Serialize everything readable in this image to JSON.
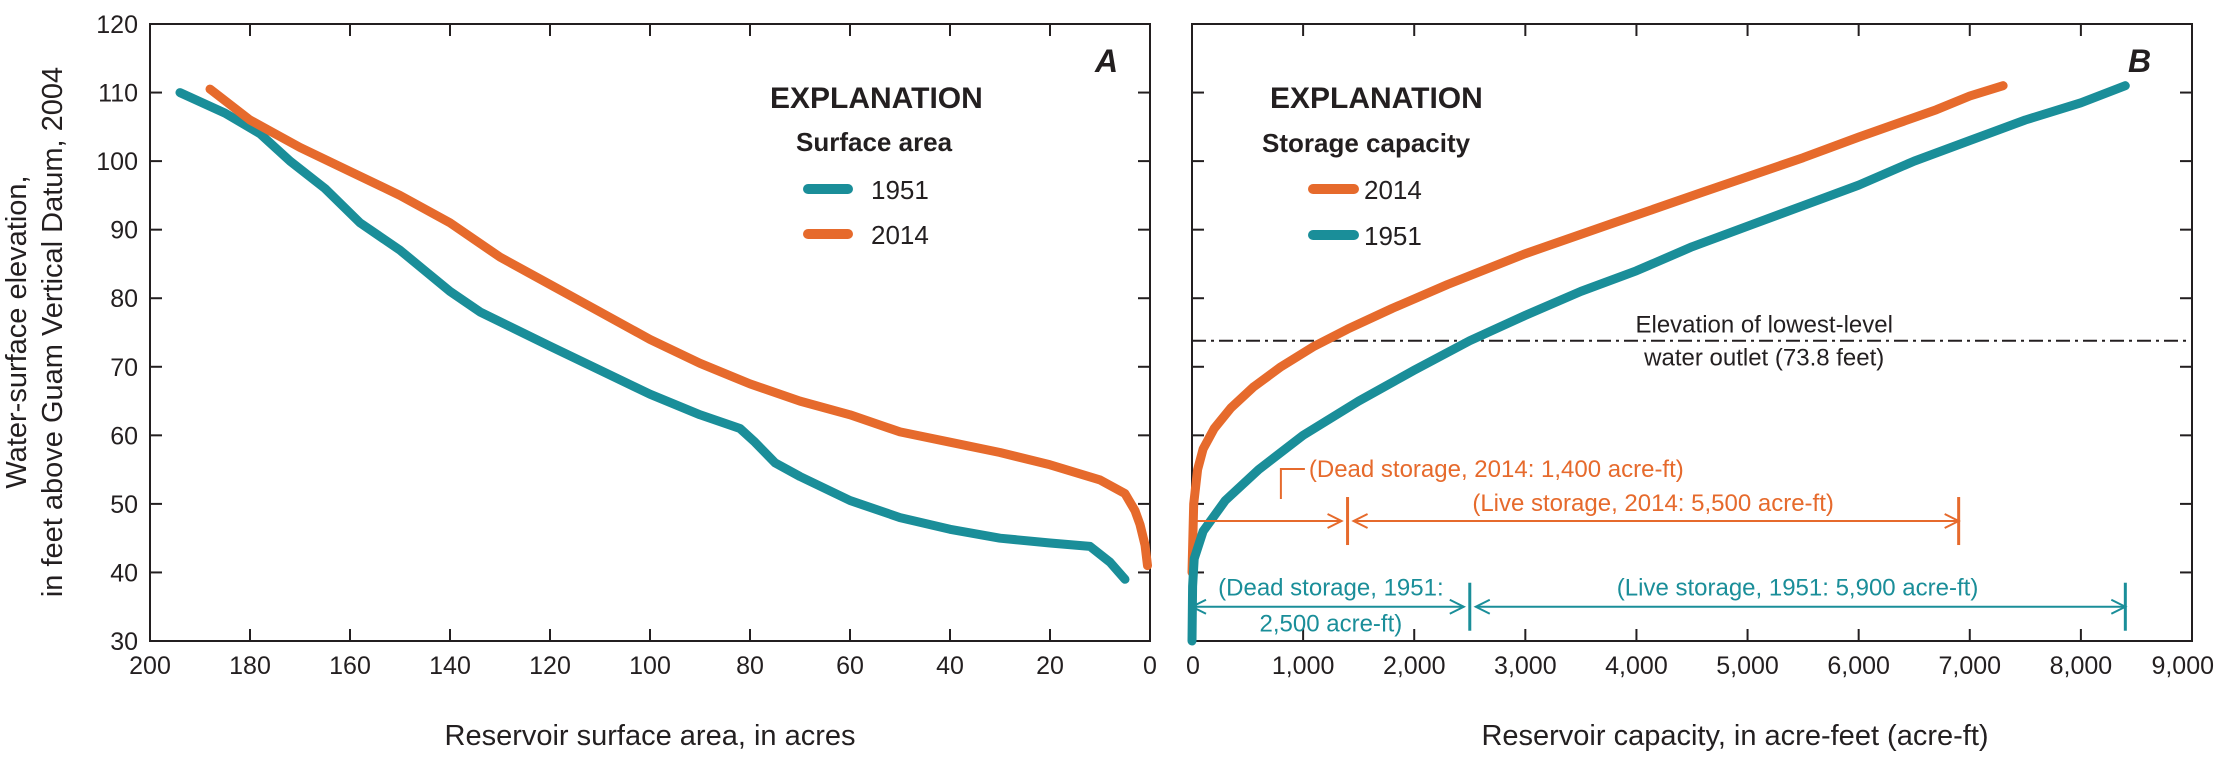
{
  "chart_data": [
    {
      "type": "line",
      "panel": "A",
      "xlabel": "Reservoir surface area, in acres",
      "ylabel_line1": "Water-surface elevation,",
      "ylabel_line2": "in feet above Guam Vertical Datum, 2004",
      "xlim": [
        200,
        0
      ],
      "ylim": [
        30,
        120
      ],
      "x_ticks": [
        "200",
        "180",
        "160",
        "140",
        "120",
        "100",
        "80",
        "60",
        "40",
        "20",
        "0"
      ],
      "y_ticks": [
        "30",
        "40",
        "50",
        "60",
        "70",
        "80",
        "90",
        "100",
        "110",
        "120"
      ],
      "legend": {
        "title": "EXPLANATION",
        "subtitle": "Surface area",
        "position": "top-right"
      },
      "series": [
        {
          "name": "1951",
          "color": "#1a8e99",
          "points": [
            [
              194,
              110
            ],
            [
              185,
              107
            ],
            [
              178,
              104
            ],
            [
              172,
              100
            ],
            [
              165,
              96
            ],
            [
              158,
              91
            ],
            [
              150,
              87
            ],
            [
              145,
              84
            ],
            [
              140,
              81
            ],
            [
              134,
              78
            ],
            [
              127,
              75.5
            ],
            [
              120,
              73
            ],
            [
              110,
              69.5
            ],
            [
              100,
              66
            ],
            [
              90,
              63
            ],
            [
              82,
              61
            ],
            [
              79,
              59
            ],
            [
              75,
              56
            ],
            [
              70,
              54
            ],
            [
              60,
              50.5
            ],
            [
              50,
              48
            ],
            [
              40,
              46.3
            ],
            [
              30,
              45
            ],
            [
              20,
              44.3
            ],
            [
              12,
              43.8
            ],
            [
              8,
              41.5
            ],
            [
              5,
              39
            ]
          ]
        },
        {
          "name": "2014",
          "color": "#e66a2c",
          "points": [
            [
              188,
              110.5
            ],
            [
              180,
              106
            ],
            [
              170,
              102
            ],
            [
              160,
              98.5
            ],
            [
              150,
              95
            ],
            [
              140,
              91
            ],
            [
              130,
              86
            ],
            [
              120,
              82
            ],
            [
              110,
              78
            ],
            [
              100,
              74
            ],
            [
              90,
              70.5
            ],
            [
              80,
              67.5
            ],
            [
              70,
              65
            ],
            [
              60,
              63
            ],
            [
              50,
              60.5
            ],
            [
              40,
              59
            ],
            [
              30,
              57.5
            ],
            [
              20,
              55.7
            ],
            [
              10,
              53.5
            ],
            [
              5,
              51.5
            ],
            [
              3,
              49
            ],
            [
              2,
              47
            ],
            [
              1,
              44
            ],
            [
              0.5,
              41
            ]
          ]
        }
      ]
    },
    {
      "type": "line",
      "panel": "B",
      "xlabel": "Reservoir capacity, in acre-feet (acre-ft)",
      "xlim": [
        0,
        9000
      ],
      "ylim": [
        30,
        120
      ],
      "x_ticks": [
        "0",
        "1,000",
        "2,000",
        "3,000",
        "4,000",
        "5,000",
        "6,000",
        "7,000",
        "8,000",
        "9,000"
      ],
      "legend": {
        "title": "EXPLANATION",
        "subtitle": "Storage capacity",
        "position": "top-left"
      },
      "series": [
        {
          "name": "2014",
          "color": "#e66a2c",
          "points": [
            [
              0,
              40
            ],
            [
              15,
              50
            ],
            [
              50,
              55
            ],
            [
              100,
              58
            ],
            [
              200,
              61
            ],
            [
              350,
              64
            ],
            [
              550,
              67
            ],
            [
              800,
              70
            ],
            [
              1100,
              73
            ],
            [
              1400,
              75.5
            ],
            [
              1800,
              78.5
            ],
            [
              2300,
              82
            ],
            [
              3000,
              86.5
            ],
            [
              3800,
              91
            ],
            [
              4600,
              95.5
            ],
            [
              5500,
              100.5
            ],
            [
              6000,
              103.5
            ],
            [
              6700,
              107.5
            ],
            [
              7000,
              109.5
            ],
            [
              7300,
              111
            ]
          ]
        },
        {
          "name": "1951",
          "color": "#1a8e99",
          "points": [
            [
              0,
              30
            ],
            [
              5,
              38
            ],
            [
              20,
              42
            ],
            [
              100,
              46
            ],
            [
              300,
              50.5
            ],
            [
              600,
              55
            ],
            [
              1000,
              60
            ],
            [
              1500,
              65
            ],
            [
              2000,
              69.5
            ],
            [
              2500,
              73.8
            ],
            [
              3000,
              77.5
            ],
            [
              3500,
              81
            ],
            [
              4000,
              84
            ],
            [
              4500,
              87.5
            ],
            [
              5000,
              90.5
            ],
            [
              5500,
              93.5
            ],
            [
              6000,
              96.5
            ],
            [
              6500,
              100
            ],
            [
              7000,
              103
            ],
            [
              7500,
              106
            ],
            [
              8000,
              108.5
            ],
            [
              8400,
              111
            ]
          ]
        }
      ],
      "reference_line": {
        "y": 73.8,
        "label_line1": "Elevation of lowest-level",
        "label_line2": "water outlet (73.8 feet)"
      },
      "annotations": {
        "dead_2014": "(Dead storage, 2014: 1,400 acre-ft)",
        "live_2014": "(Live storage, 2014: 5,500 acre-ft)",
        "dead_1951_line1": "(Dead storage, 1951:",
        "dead_1951_line2": "2,500 acre-ft)",
        "live_1951": "(Live storage, 1951: 5,900 acre-ft)"
      },
      "storage_ranges": {
        "dead_2014": [
          0,
          1400
        ],
        "live_2014": [
          1400,
          6900
        ],
        "dead_1951": [
          0,
          2500
        ],
        "live_1951": [
          2500,
          8400
        ]
      }
    }
  ]
}
